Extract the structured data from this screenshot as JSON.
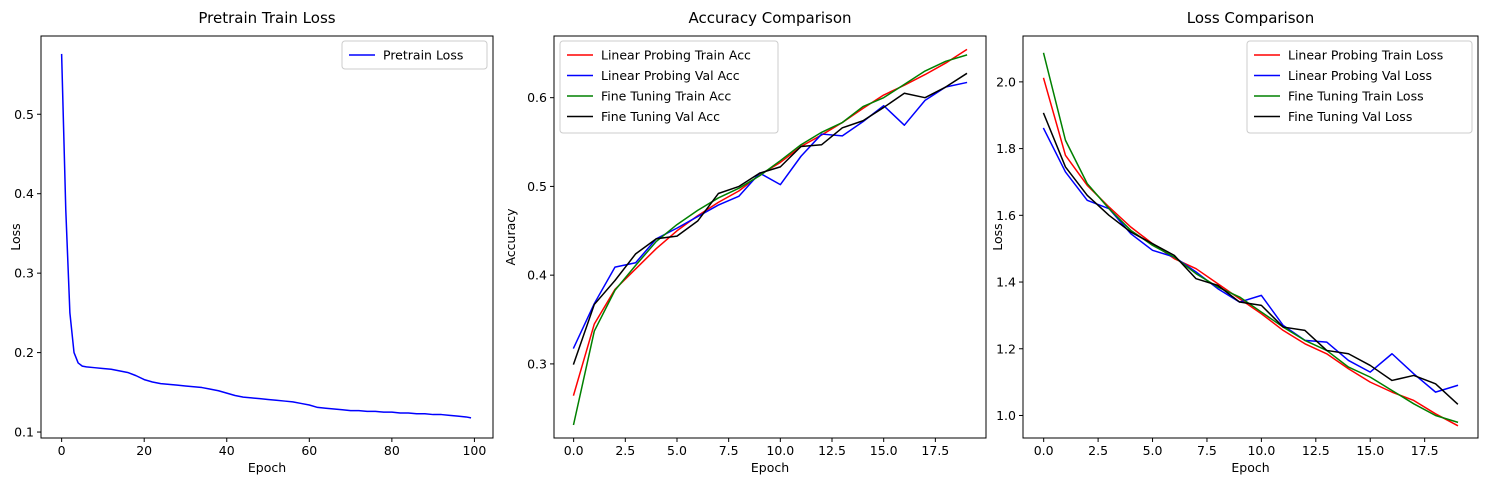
{
  "chart_data": [
    {
      "type": "line",
      "title": "Pretrain Train Loss",
      "xlabel": "Epoch",
      "ylabel": "Loss",
      "xlim": [
        -5,
        104.5
      ],
      "ylim": [
        0.0925,
        0.5985
      ],
      "xticks": [
        0,
        20,
        40,
        60,
        80,
        100
      ],
      "yticks": [
        0.1,
        0.2,
        0.3,
        0.4,
        0.5
      ],
      "xtick_labels": [
        "0",
        "20",
        "40",
        "60",
        "80",
        "100"
      ],
      "ytick_labels": [
        "0.1",
        "0.2",
        "0.3",
        "0.4",
        "0.5"
      ],
      "grid": false,
      "legend_position": "top-right",
      "series": [
        {
          "name": "Pretrain Loss",
          "color": "#0000ff",
          "x": [
            0,
            1,
            2,
            3,
            4,
            5,
            6,
            8,
            10,
            12,
            14,
            16,
            18,
            20,
            22,
            24,
            26,
            28,
            30,
            32,
            34,
            36,
            38,
            40,
            42,
            44,
            46,
            48,
            50,
            52,
            54,
            56,
            58,
            60,
            62,
            64,
            66,
            68,
            70,
            72,
            74,
            76,
            78,
            80,
            82,
            84,
            86,
            88,
            90,
            92,
            94,
            96,
            98,
            99
          ],
          "y": [
            0.575,
            0.38,
            0.25,
            0.2,
            0.187,
            0.183,
            0.182,
            0.181,
            0.18,
            0.179,
            0.177,
            0.175,
            0.171,
            0.166,
            0.163,
            0.161,
            0.16,
            0.159,
            0.158,
            0.157,
            0.156,
            0.154,
            0.152,
            0.149,
            0.146,
            0.144,
            0.143,
            0.142,
            0.141,
            0.14,
            0.139,
            0.138,
            0.136,
            0.134,
            0.131,
            0.13,
            0.129,
            0.128,
            0.127,
            0.127,
            0.126,
            0.126,
            0.125,
            0.125,
            0.124,
            0.124,
            0.123,
            0.123,
            0.122,
            0.122,
            0.121,
            0.12,
            0.119,
            0.118
          ]
        }
      ]
    },
    {
      "type": "line",
      "title": "Accuracy Comparison",
      "xlabel": "Epoch",
      "ylabel": "Accuracy",
      "xlim": [
        -0.95,
        19.95
      ],
      "ylim": [
        0.2165,
        0.6695
      ],
      "xticks": [
        0,
        2.5,
        5,
        7.5,
        10,
        12.5,
        15,
        17.5
      ],
      "yticks": [
        0.3,
        0.4,
        0.5,
        0.6
      ],
      "xtick_labels": [
        "0.0",
        "2.5",
        "5.0",
        "7.5",
        "10.0",
        "12.5",
        "15.0",
        "17.5"
      ],
      "ytick_labels": [
        "0.3",
        "0.4",
        "0.5",
        "0.6"
      ],
      "grid": false,
      "legend_position": "top-left",
      "series": [
        {
          "name": "Linear Probing Train Acc",
          "color": "#ff0000",
          "x": [
            0,
            1,
            2,
            3,
            4,
            5,
            6,
            7,
            8,
            9,
            10,
            11,
            12,
            13,
            14,
            15,
            16,
            17,
            18,
            19
          ],
          "y": [
            0.265,
            0.345,
            0.384,
            0.407,
            0.43,
            0.45,
            0.467,
            0.482,
            0.495,
            0.513,
            0.527,
            0.545,
            0.558,
            0.572,
            0.588,
            0.603,
            0.614,
            0.626,
            0.639,
            0.654
          ]
        },
        {
          "name": "Linear Probing Val Acc",
          "color": "#0000ff",
          "x": [
            0,
            1,
            2,
            3,
            4,
            5,
            6,
            7,
            8,
            9,
            10,
            11,
            12,
            13,
            14,
            15,
            16,
            17,
            18,
            19
          ],
          "y": [
            0.318,
            0.368,
            0.409,
            0.414,
            0.441,
            0.453,
            0.466,
            0.479,
            0.489,
            0.515,
            0.502,
            0.534,
            0.559,
            0.557,
            0.573,
            0.591,
            0.569,
            0.597,
            0.612,
            0.617
          ]
        },
        {
          "name": "Fine Tuning Train Acc",
          "color": "#008000",
          "x": [
            0,
            1,
            2,
            3,
            4,
            5,
            6,
            7,
            8,
            9,
            10,
            11,
            12,
            13,
            14,
            15,
            16,
            17,
            18,
            19
          ],
          "y": [
            0.232,
            0.337,
            0.383,
            0.411,
            0.438,
            0.457,
            0.473,
            0.487,
            0.498,
            0.512,
            0.529,
            0.547,
            0.561,
            0.572,
            0.59,
            0.6,
            0.615,
            0.63,
            0.641,
            0.648
          ]
        },
        {
          "name": "Fine Tuning Val Acc",
          "color": "#000000",
          "x": [
            0,
            1,
            2,
            3,
            4,
            5,
            6,
            7,
            8,
            9,
            10,
            11,
            12,
            13,
            14,
            15,
            16,
            17,
            18,
            19
          ],
          "y": [
            0.3,
            0.367,
            0.394,
            0.424,
            0.441,
            0.444,
            0.461,
            0.492,
            0.5,
            0.515,
            0.522,
            0.545,
            0.547,
            0.566,
            0.574,
            0.589,
            0.605,
            0.6,
            0.612,
            0.627
          ]
        }
      ]
    },
    {
      "type": "line",
      "title": "Loss Comparison",
      "xlabel": "Epoch",
      "ylabel": "Loss",
      "xlim": [
        -0.95,
        19.95
      ],
      "ylim": [
        0.9325,
        2.1375
      ],
      "xticks": [
        0,
        2.5,
        5,
        7.5,
        10,
        12.5,
        15,
        17.5
      ],
      "yticks": [
        1.0,
        1.2,
        1.4,
        1.6,
        1.8,
        2.0
      ],
      "xtick_labels": [
        "0.0",
        "2.5",
        "5.0",
        "7.5",
        "10.0",
        "12.5",
        "15.0",
        "17.5"
      ],
      "ytick_labels": [
        "1.0",
        "1.2",
        "1.4",
        "1.6",
        "1.8",
        "2.0"
      ],
      "grid": false,
      "legend_position": "top-right",
      "series": [
        {
          "name": "Linear Probing Train Loss",
          "color": "#ff0000",
          "x": [
            0,
            1,
            2,
            3,
            4,
            5,
            6,
            7,
            8,
            9,
            10,
            11,
            12,
            13,
            14,
            15,
            16,
            17,
            18,
            19
          ],
          "y": [
            2.01,
            1.78,
            1.69,
            1.625,
            1.565,
            1.515,
            1.47,
            1.44,
            1.395,
            1.35,
            1.305,
            1.255,
            1.215,
            1.185,
            1.14,
            1.1,
            1.07,
            1.045,
            1.005,
            0.97
          ]
        },
        {
          "name": "Linear Probing Val Loss",
          "color": "#0000ff",
          "x": [
            0,
            1,
            2,
            3,
            4,
            5,
            6,
            7,
            8,
            9,
            10,
            11,
            12,
            13,
            14,
            15,
            16,
            17,
            18,
            19
          ],
          "y": [
            1.86,
            1.73,
            1.645,
            1.62,
            1.545,
            1.495,
            1.475,
            1.43,
            1.38,
            1.34,
            1.36,
            1.27,
            1.225,
            1.22,
            1.165,
            1.13,
            1.185,
            1.125,
            1.07,
            1.09
          ]
        },
        {
          "name": "Fine Tuning Train Loss",
          "color": "#008000",
          "x": [
            0,
            1,
            2,
            3,
            4,
            5,
            6,
            7,
            8,
            9,
            10,
            11,
            12,
            13,
            14,
            15,
            16,
            17,
            18,
            19
          ],
          "y": [
            2.085,
            1.825,
            1.695,
            1.62,
            1.555,
            1.51,
            1.475,
            1.425,
            1.385,
            1.355,
            1.31,
            1.265,
            1.225,
            1.195,
            1.145,
            1.115,
            1.075,
            1.035,
            1.0,
            0.98
          ]
        },
        {
          "name": "Fine Tuning Val Loss",
          "color": "#000000",
          "x": [
            0,
            1,
            2,
            3,
            4,
            5,
            6,
            7,
            8,
            9,
            10,
            11,
            12,
            13,
            14,
            15,
            16,
            17,
            18,
            19
          ],
          "y": [
            1.905,
            1.745,
            1.66,
            1.6,
            1.55,
            1.515,
            1.48,
            1.41,
            1.39,
            1.34,
            1.33,
            1.265,
            1.255,
            1.195,
            1.185,
            1.15,
            1.105,
            1.12,
            1.095,
            1.035
          ]
        }
      ]
    }
  ]
}
